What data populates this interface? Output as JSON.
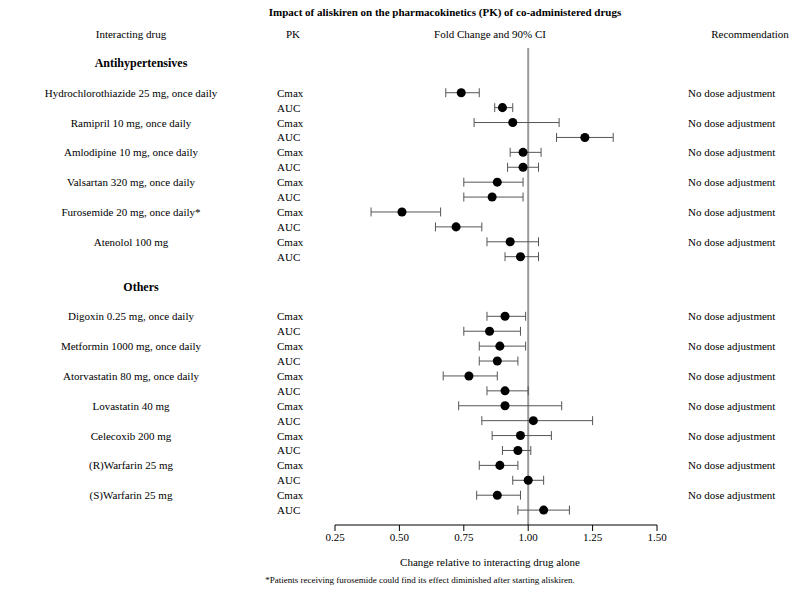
{
  "chart_data": {
    "type": "forest",
    "title": "Impact of aliskiren on the pharmacokinetics (PK) of co-administered drugs",
    "column_headers": [
      "Interacting drug",
      "PK",
      "Fold Change and 90% CI",
      "Recommendation"
    ],
    "xlabel": "Change relative to interacting drug alone",
    "footnote": "*Patients receiving furosemide could find its effect diminished after starting aliskiren.",
    "xlim": [
      0.25,
      1.5
    ],
    "xticks": [
      0.25,
      {
        "value": 0.5,
        "label": "0.50"
      },
      0.75,
      {
        "value": 1.0,
        "label": "1.00"
      },
      1.25,
      {
        "value": 1.5,
        "label": "1.50"
      }
    ],
    "reference_line": 1.0,
    "color": "#000000",
    "tick_labels": "x",
    "groups": [
      {
        "name": "Antihypertensives",
        "drugs": [
          {
            "name": "Hydrochlorothiazide 25 mg, once daily",
            "recommendation": "No dose adjustment",
            "pk": [
              {
                "parameter": "Cmax",
                "value": 0.74,
                "ci": [
                  0.68,
                  0.81
                ]
              },
              {
                "parameter": "AUC",
                "value": 0.9,
                "ci": [
                  0.87,
                  0.94
                ]
              }
            ]
          },
          {
            "name": "Ramipril 10 mg, once daily",
            "recommendation": "No dose adjustment",
            "pk": [
              {
                "parameter": "Cmax",
                "value": 0.94,
                "ci": [
                  0.79,
                  1.12
                ]
              },
              {
                "parameter": "AUC",
                "value": 1.22,
                "ci": [
                  1.11,
                  1.33
                ]
              }
            ]
          },
          {
            "name": "Amlodipine 10 mg, once daily",
            "recommendation": "No dose adjustment",
            "pk": [
              {
                "parameter": "Cmax",
                "value": 0.98,
                "ci": [
                  0.93,
                  1.05
                ]
              },
              {
                "parameter": "AUC",
                "value": 0.98,
                "ci": [
                  0.92,
                  1.04
                ]
              }
            ]
          },
          {
            "name": "Valsartan 320 mg, once daily",
            "recommendation": "No dose adjustment",
            "pk": [
              {
                "parameter": "Cmax",
                "value": 0.88,
                "ci": [
                  0.75,
                  0.98
                ]
              },
              {
                "parameter": "AUC",
                "value": 0.86,
                "ci": [
                  0.75,
                  0.98
                ]
              }
            ]
          },
          {
            "name": "Furosemide 20 mg, once daily*",
            "recommendation": "No dose adjustment",
            "pk": [
              {
                "parameter": "Cmax",
                "value": 0.51,
                "ci": [
                  0.39,
                  0.66
                ]
              },
              {
                "parameter": "AUC",
                "value": 0.72,
                "ci": [
                  0.64,
                  0.82
                ]
              }
            ]
          },
          {
            "name": "Atenolol 100 mg",
            "recommendation": "No dose adjustment",
            "pk": [
              {
                "parameter": "Cmax",
                "value": 0.93,
                "ci": [
                  0.84,
                  1.04
                ]
              },
              {
                "parameter": "AUC",
                "value": 0.97,
                "ci": [
                  0.91,
                  1.04
                ]
              }
            ]
          }
        ]
      },
      {
        "name": "Others",
        "drugs": [
          {
            "name": "Digoxin 0.25 mg, once daily",
            "recommendation": "No dose adjustment",
            "pk": [
              {
                "parameter": "Cmax",
                "value": 0.91,
                "ci": [
                  0.84,
                  0.99
                ]
              },
              {
                "parameter": "AUC",
                "value": 0.85,
                "ci": [
                  0.75,
                  0.97
                ]
              }
            ]
          },
          {
            "name": "Metformin 1000 mg, once daily",
            "recommendation": "No dose adjustment",
            "pk": [
              {
                "parameter": "Cmax",
                "value": 0.89,
                "ci": [
                  0.81,
                  0.99
                ]
              },
              {
                "parameter": "AUC",
                "value": 0.88,
                "ci": [
                  0.81,
                  0.96
                ]
              }
            ]
          },
          {
            "name": "Atorvastatin 80 mg, once daily",
            "recommendation": "No dose adjustment",
            "pk": [
              {
                "parameter": "Cmax",
                "value": 0.77,
                "ci": [
                  0.67,
                  0.88
                ]
              },
              {
                "parameter": "AUC",
                "value": 0.91,
                "ci": [
                  0.84,
                  1.0
                ]
              }
            ]
          },
          {
            "name": "Lovastatin 40 mg",
            "recommendation": "No dose adjustment",
            "pk": [
              {
                "parameter": "Cmax",
                "value": 0.91,
                "ci": [
                  0.73,
                  1.13
                ]
              },
              {
                "parameter": "AUC",
                "value": 1.02,
                "ci": [
                  0.82,
                  1.25
                ]
              }
            ]
          },
          {
            "name": "Celecoxib 200 mg",
            "recommendation": "No dose adjustment",
            "pk": [
              {
                "parameter": "Cmax",
                "value": 0.97,
                "ci": [
                  0.86,
                  1.09
                ]
              },
              {
                "parameter": "AUC",
                "value": 0.96,
                "ci": [
                  0.9,
                  1.01
                ]
              }
            ]
          },
          {
            "name": "(R)Warfarin 25 mg",
            "recommendation": "No dose adjustment",
            "pk": [
              {
                "parameter": "Cmax",
                "value": 0.89,
                "ci": [
                  0.81,
                  0.96
                ]
              },
              {
                "parameter": "AUC",
                "value": 1.0,
                "ci": [
                  0.94,
                  1.06
                ]
              }
            ]
          },
          {
            "name": "(S)Warfarin 25 mg",
            "recommendation": "No dose adjustment",
            "pk": [
              {
                "parameter": "Cmax",
                "value": 0.88,
                "ci": [
                  0.8,
                  0.97
                ]
              },
              {
                "parameter": "AUC",
                "value": 1.06,
                "ci": [
                  0.96,
                  1.16
                ]
              }
            ]
          }
        ]
      }
    ]
  }
}
